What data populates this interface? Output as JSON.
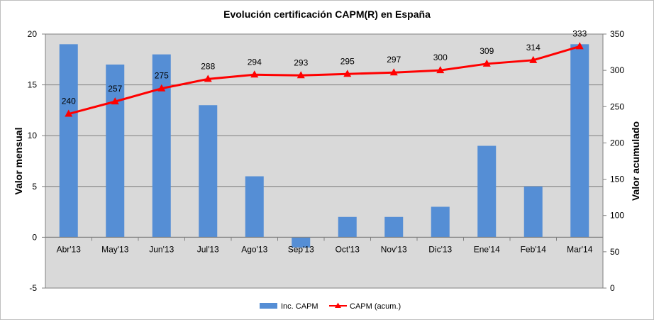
{
  "chart_data": {
    "type": "bar",
    "title": "Evolución certificación CAPM(R) en España",
    "ylabel": "Valor mensual",
    "y2label": "Valor acumulado",
    "categories": [
      "Abr'13",
      "May'13",
      "Jun'13",
      "Jul'13",
      "Ago'13",
      "Sep'13",
      "Oct'13",
      "Nov'13",
      "Dic'13",
      "Ene'14",
      "Feb'14",
      "Mar'14"
    ],
    "ylim": [
      -5,
      20
    ],
    "yticks": [
      -5,
      0,
      5,
      10,
      15,
      20
    ],
    "y2lim": [
      0,
      350
    ],
    "y2ticks": [
      0,
      50,
      100,
      150,
      200,
      250,
      300,
      350
    ],
    "grid": true,
    "legend_position": "bottom",
    "series": [
      {
        "name": "Inc. CAPM",
        "type": "bar",
        "axis": "left",
        "color": "#558ed5",
        "values": [
          19,
          17,
          18,
          13,
          6,
          -1,
          2,
          2,
          3,
          9,
          5,
          19
        ]
      },
      {
        "name": "CAPM (acum.)",
        "type": "line",
        "axis": "right",
        "color": "#ff0000",
        "marker": "triangle",
        "values": [
          240,
          257,
          275,
          288,
          294,
          293,
          295,
          297,
          300,
          309,
          314,
          333
        ]
      }
    ]
  }
}
